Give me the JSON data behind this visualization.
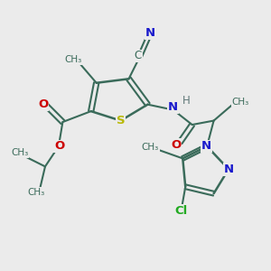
{
  "background_color": "#ebebeb",
  "atom_colors": {
    "C": "#3a6b5a",
    "N": "#1a1acc",
    "O": "#cc0000",
    "S": "#b8b800",
    "Cl": "#22aa22",
    "H": "#607878"
  },
  "bond_color": "#3a6b5a",
  "figsize": [
    3.0,
    3.0
  ],
  "dpi": 100,
  "xlim": [
    0,
    10
  ],
  "ylim": [
    0,
    10
  ]
}
